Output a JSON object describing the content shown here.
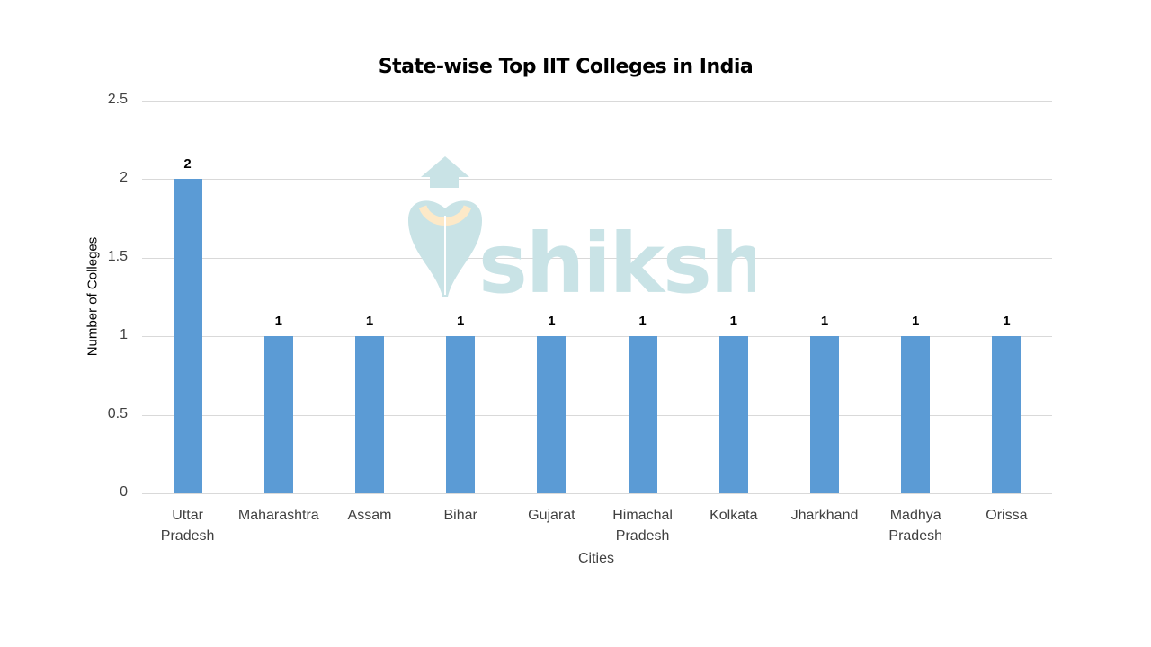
{
  "chart_data": {
    "type": "bar",
    "title": "State-wise Top IIT Colleges in India",
    "xlabel": "Cities",
    "ylabel": "Number of Colleges",
    "categories": [
      "Uttar Pradesh",
      "Maharashtra",
      "Assam",
      "Bihar",
      "Gujarat",
      "Himachal Pradesh",
      "Kolkata",
      "Jharkhand",
      "Madhya Pradesh",
      "Orissa"
    ],
    "category_lines": [
      [
        "Uttar",
        "Pradesh"
      ],
      [
        "Maharashtra"
      ],
      [
        "Assam"
      ],
      [
        "Bihar"
      ],
      [
        "Gujarat"
      ],
      [
        "Himachal",
        "Pradesh"
      ],
      [
        "Kolkata"
      ],
      [
        "Jharkhand"
      ],
      [
        "Madhya",
        "Pradesh"
      ],
      [
        "Orissa"
      ]
    ],
    "values": [
      2,
      1,
      1,
      1,
      1,
      1,
      1,
      1,
      1,
      1
    ],
    "data_labels": [
      "2",
      "1",
      "1",
      "1",
      "1",
      "1",
      "1",
      "1",
      "1",
      "1"
    ],
    "ylim": [
      0,
      2.5
    ],
    "yticks": [
      "0",
      "0.5",
      "1",
      "1.5",
      "2",
      "2.5"
    ],
    "grid": true,
    "legend": "none",
    "bar_color": "#5b9bd5"
  },
  "watermark": {
    "text": "shiksha",
    "color": "#c9e3e6",
    "accent": "#fde9c8"
  }
}
